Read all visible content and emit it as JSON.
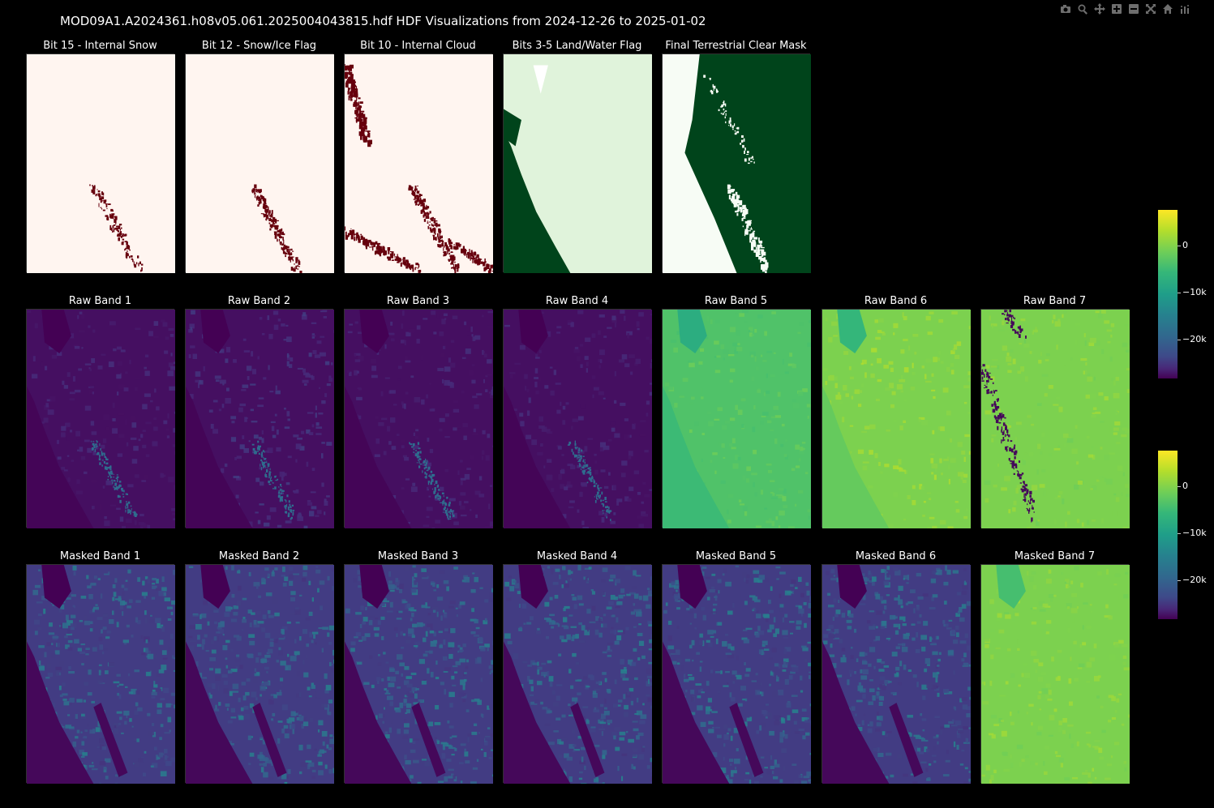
{
  "title": "MOD09A1.A2024361.h08v05.061.2025004043815.hdf HDF Visualizations from 2024-12-26 to 2025-01-02",
  "modebar": [
    {
      "name": "camera-icon"
    },
    {
      "name": "zoom-icon"
    },
    {
      "name": "pan-icon"
    },
    {
      "name": "zoom-in-icon"
    },
    {
      "name": "zoom-out-icon"
    },
    {
      "name": "autoscale-icon"
    },
    {
      "name": "reset-axes-icon"
    },
    {
      "name": "plotly-logo-icon"
    }
  ],
  "rows": [
    {
      "panels": [
        {
          "title": "Bit 15 - Internal Snow",
          "style": "flag-snow"
        },
        {
          "title": "Bit 12 - Snow/Ice Flag",
          "style": "flag-snowice"
        },
        {
          "title": "Bit 10 - Internal Cloud",
          "style": "flag-cloud"
        },
        {
          "title": "Bits 3-5 Land/Water Flag",
          "style": "landwater"
        },
        {
          "title": "Final Terrestrial Clear Mask",
          "style": "clearmask"
        }
      ]
    },
    {
      "panels": [
        {
          "title": "Raw Band 1",
          "style": "raw-dark"
        },
        {
          "title": "Raw Band 2",
          "style": "raw-dark2"
        },
        {
          "title": "Raw Band 3",
          "style": "raw-dark"
        },
        {
          "title": "Raw Band 4",
          "style": "raw-dark"
        },
        {
          "title": "Raw Band 5",
          "style": "raw-green"
        },
        {
          "title": "Raw Band 6",
          "style": "raw-yellow"
        },
        {
          "title": "Raw Band 7",
          "style": "raw-band7"
        }
      ]
    },
    {
      "panels": [
        {
          "title": "Masked Band 1",
          "style": "masked"
        },
        {
          "title": "Masked Band 2",
          "style": "masked"
        },
        {
          "title": "Masked Band 3",
          "style": "masked"
        },
        {
          "title": "Masked Band 4",
          "style": "masked"
        },
        {
          "title": "Masked Band 5",
          "style": "masked"
        },
        {
          "title": "Masked Band 6",
          "style": "masked"
        },
        {
          "title": "Masked Band 7",
          "style": "masked-yellow"
        }
      ]
    }
  ],
  "colorbars": [
    {
      "ticks": [
        "0",
        "−10k",
        "−20k"
      ]
    },
    {
      "ticks": [
        "0",
        "−10k",
        "−20k"
      ]
    }
  ],
  "colors": {
    "background": "#000000",
    "flag_bg": "#fff5f0",
    "flag_mark": "#67000d",
    "landwater_dark": "#00441b",
    "landwater_light": "#e0f3db",
    "viridis_low": "#440154",
    "viridis_high": "#fde725"
  }
}
